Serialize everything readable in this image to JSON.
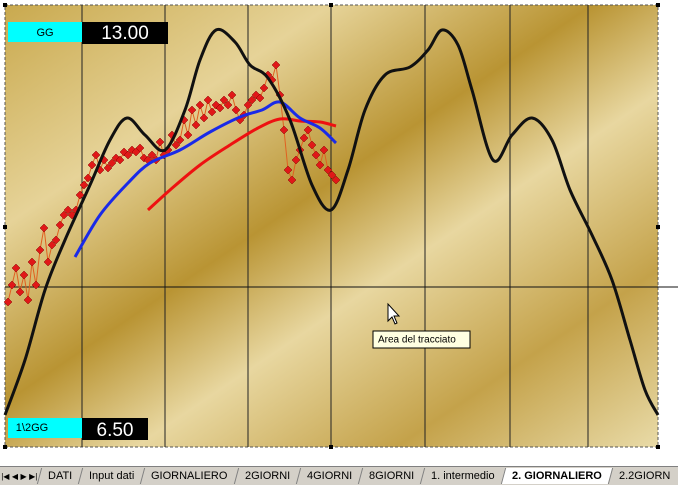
{
  "chart": {
    "top_box": {
      "label": "GG",
      "value": "13.00"
    },
    "bottom_box": {
      "label": "1\\2GG",
      "value": "6.50"
    },
    "tooltip": "Area del tracciato"
  },
  "tabs": [
    "DATI",
    "Input dati",
    "GIORNALIERO",
    "2GIORNI",
    "4GIORNI",
    "8GIORNI",
    "1. intermedio",
    "2. GIORNALIERO",
    "2.2GIORN"
  ],
  "active_tab": 7
}
